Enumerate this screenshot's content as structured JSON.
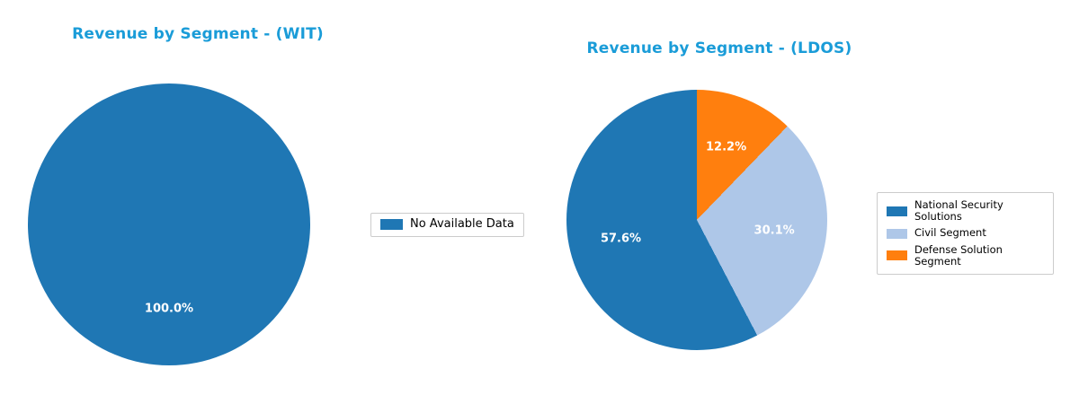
{
  "styles": {
    "title_color": "#1a9cd8",
    "pct_label_color": "#ffffff",
    "legend_border_color": "#cccccc",
    "background": "#ffffff"
  },
  "chart_data": [
    {
      "type": "pie",
      "title": "Revenue by Segment - (WIT)",
      "labels": [
        "No Available Data"
      ],
      "values": [
        100.0
      ],
      "pct_labels": [
        "100.0%"
      ],
      "colors": [
        "#1f77b4"
      ],
      "start_angle": 90,
      "direction": "counterclockwise",
      "pct_distance": 0.6,
      "legend_position": "right"
    },
    {
      "type": "pie",
      "title": "Revenue by Segment - (LDOS)",
      "labels": [
        "National Security Solutions",
        "Civil Segment",
        "Defense Solution Segment"
      ],
      "values": [
        57.6,
        30.1,
        12.2
      ],
      "pct_labels": [
        "57.6%",
        "30.1%",
        "12.2%"
      ],
      "colors": [
        "#1f77b4",
        "#aec7e8",
        "#ff7f0e"
      ],
      "start_angle": 90,
      "direction": "counterclockwise",
      "pct_distance": 0.6,
      "legend_position": "right"
    }
  ]
}
